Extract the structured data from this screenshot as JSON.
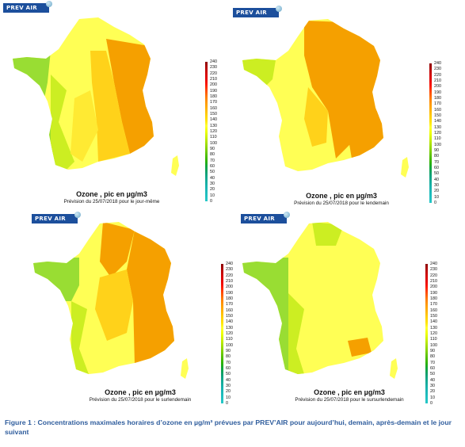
{
  "logo_text": "PREV AIR",
  "pollutant_title": "Ozone , pic en µg/m3",
  "panels": [
    {
      "subtitle": "Prévision du 25/07/2018 pour le jour-même"
    },
    {
      "subtitle": "Prévision du 25/07/2018 pour le lendemain"
    },
    {
      "subtitle": "Prévision du 25/07/2018 pour le surlendemain"
    },
    {
      "subtitle": "Prévision du 25/07/2018 pour le sursurlendemain"
    }
  ],
  "scale": {
    "ticks": [
      "240",
      "230",
      "220",
      "210",
      "200",
      "190",
      "180",
      "170",
      "160",
      "150",
      "140",
      "130",
      "120",
      "110",
      "100",
      "90",
      "80",
      "70",
      "60",
      "50",
      "40",
      "30",
      "20",
      "10",
      "0"
    ],
    "colors": [
      "#8b0000",
      "#b40000",
      "#d40000",
      "#e80000",
      "#ff1a00",
      "#ff4d00",
      "#ff7a00",
      "#ff9900",
      "#ffb000",
      "#ffcc00",
      "#ffe000",
      "#ffff33",
      "#eeff00",
      "#ccf000",
      "#a6e000",
      "#7fd000",
      "#55c000",
      "#2fb300",
      "#10a640",
      "#10a070",
      "#14a890",
      "#18b0a8",
      "#1cb8b8",
      "#20c0c0",
      "#26c8c8"
    ]
  },
  "map_colors": {
    "high": "#f5a000",
    "mid": "#ffcc00",
    "low": "#ffff44",
    "green": "#99dd33",
    "lime": "#ccee11"
  },
  "caption": "Figure 1 : Concentrations maximales horaires d’ozone en µg/m³ prévues par PREV’AIR pour aujourd’hui, demain, après-demain et le jour suivant"
}
